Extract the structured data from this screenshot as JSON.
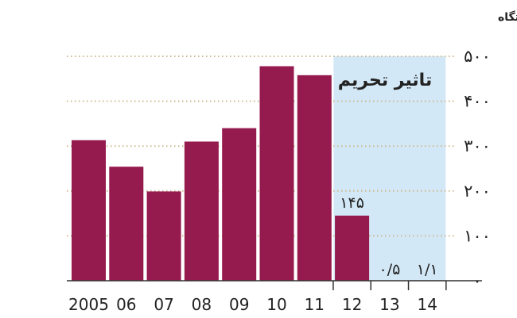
{
  "chart_data": {
    "type": "bar",
    "ylabel": "هزار دستگاه",
    "ylim": [
      0,
      500
    ],
    "yticks": [
      {
        "value": 0,
        "label": "۰"
      },
      {
        "value": 100,
        "label": "۱۰۰"
      },
      {
        "value": 200,
        "label": "۲۰۰"
      },
      {
        "value": 300,
        "label": "۳۰۰"
      },
      {
        "value": 400,
        "label": "۴۰۰"
      },
      {
        "value": 500,
        "label": "۵۰۰"
      }
    ],
    "categories": [
      "2005",
      "06",
      "07",
      "08",
      "09",
      "10",
      "11",
      "12",
      "13",
      "14"
    ],
    "values": [
      313,
      254,
      199,
      310,
      340,
      478,
      458,
      145,
      0.5,
      1.1
    ],
    "data_labels": [
      {
        "category": "12",
        "text": "۱۴۵"
      },
      {
        "category": "13",
        "text": "۰/۵"
      },
      {
        "category": "14",
        "text": "۱/۱"
      }
    ],
    "shaded_region": {
      "from_category": "12",
      "to_category": "14",
      "label": "تاثیر تحریم",
      "color": "#d3e8f6"
    },
    "bar_color": "#951a4e",
    "grid": "dotted-horizontal",
    "grid_color": "#cdb98f"
  }
}
